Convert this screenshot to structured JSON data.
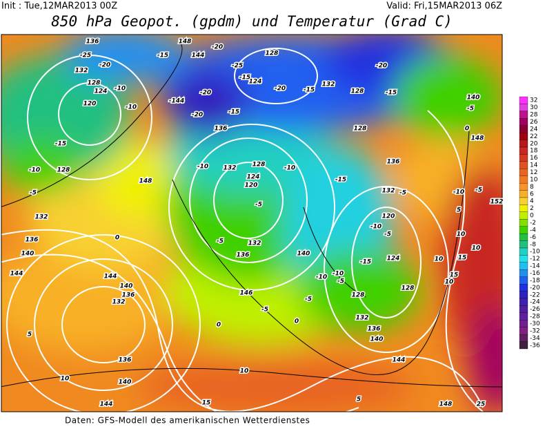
{
  "header": {
    "init": "Init : Tue,12MAR2013 00Z",
    "valid": "Valid: Fri,15MAR2013 06Z",
    "title": "850 hPa Geopot. (gpdm) und Temperatur (Grad C)"
  },
  "footer": "Daten: GFS-Modell des amerikanischen Wetterdienstes",
  "colorbar": {
    "labels": [
      "32",
      "30",
      "28",
      "26",
      "24",
      "22",
      "20",
      "18",
      "16",
      "14",
      "12",
      "10",
      "8",
      "6",
      "4",
      "2",
      "0",
      "-2",
      "-4",
      "-6",
      "-8",
      "-10",
      "-12",
      "-14",
      "-16",
      "-18",
      "-20",
      "-22",
      "-24",
      "-26",
      "-28",
      "-30",
      "-32",
      "-34",
      "-36"
    ],
    "colors": [
      "#ff30ff",
      "#e040e0",
      "#c01090",
      "#a00060",
      "#8c0030",
      "#a00010",
      "#b81818",
      "#c82820",
      "#d83820",
      "#e05020",
      "#e86420",
      "#f07a20",
      "#f89428",
      "#f8b028",
      "#f8d030",
      "#f0f000",
      "#c0f000",
      "#80e000",
      "#40d000",
      "#20c040",
      "#20c080",
      "#20d0c0",
      "#20e0e8",
      "#20c0f0",
      "#2090f0",
      "#2060f0",
      "#2030e0",
      "#3020c0",
      "#4020b0",
      "#5020a0",
      "#6020a0",
      "#702090",
      "#802080",
      "#602060",
      "#402040"
    ]
  },
  "map": {
    "contour_labels": [
      "136",
      "-25",
      "132",
      "-20",
      "-15",
      "148",
      "144",
      "-20",
      "-25",
      "128",
      "-20",
      "-15",
      "128",
      "132",
      "-20",
      "-15",
      "124",
      "-15",
      "128",
      "124",
      "-10",
      "120",
      "-10",
      "-144",
      "-20",
      "-20",
      "-15",
      "136",
      "128",
      "140",
      "-5",
      "0",
      "148",
      "-15",
      "-10",
      "128",
      "148",
      "-5",
      "132",
      "-10",
      "132",
      "128",
      "124",
      "120",
      "-10",
      "-15",
      "136",
      "132",
      "-5",
      "-5",
      "-5",
      "0",
      "136",
      "140",
      "144",
      "144",
      "140",
      "136",
      "132",
      "5",
      "136",
      "140",
      "10",
      "144",
      "10",
      "15",
      "5",
      "148",
      "25",
      "144",
      "140",
      "136",
      "132",
      "128",
      "0",
      "-5",
      "-5",
      "146",
      "140",
      "136",
      "132",
      "-5",
      "-10",
      "-5",
      "-10",
      "-15",
      "124",
      "120",
      "-10",
      "-5",
      "-10",
      "5",
      "10",
      "10",
      "15",
      "10",
      "15",
      "10",
      "128",
      "152",
      "0"
    ]
  }
}
